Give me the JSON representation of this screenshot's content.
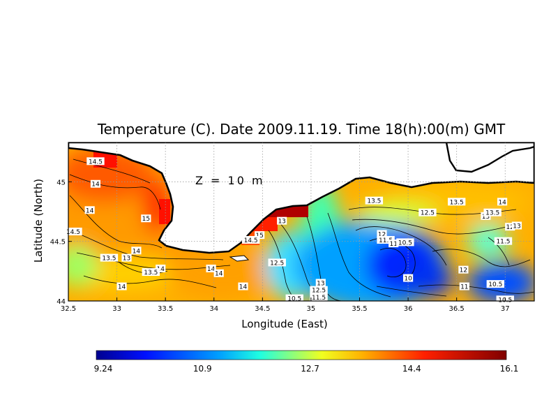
{
  "chart_data": {
    "type": "heatmap",
    "title": "Temperature (C). Date 2009.11.19. Time 18(h):00(m) GMT",
    "xlabel": "Longitude (East)",
    "ylabel": "Latitude (North)",
    "annotation": "Z = 10 m",
    "xlim": [
      32.5,
      37.3
    ],
    "ylim": [
      44.0,
      45.33
    ],
    "x_ticks": [
      "32.5",
      "33",
      "33.5",
      "34",
      "34.5",
      "35",
      "35.5",
      "36",
      "36.5",
      "37"
    ],
    "x_tick_values": [
      32.5,
      33,
      33.5,
      34,
      34.5,
      35,
      35.5,
      36,
      36.5,
      37
    ],
    "y_ticks": [
      "44",
      "44.5",
      "45"
    ],
    "y_tick_values": [
      44,
      44.5,
      45
    ],
    "grid": true,
    "colorbar": {
      "min": 9.24,
      "max": 16.1,
      "ticks": [
        "9.24",
        "10.9",
        "12.7",
        "14.4",
        "16.1"
      ],
      "tick_values": [
        9.24,
        10.9,
        12.7,
        14.4,
        16.1
      ]
    },
    "contour_labels": [
      {
        "text": "14.5",
        "lon": 32.78,
        "lat": 45.17
      },
      {
        "text": "14",
        "lon": 32.78,
        "lat": 44.98
      },
      {
        "text": "14",
        "lon": 32.72,
        "lat": 44.76
      },
      {
        "text": "14.5",
        "lon": 32.55,
        "lat": 44.58
      },
      {
        "text": "15",
        "lon": 33.3,
        "lat": 44.69
      },
      {
        "text": "14",
        "lon": 33.2,
        "lat": 44.42
      },
      {
        "text": "13.5",
        "lon": 32.92,
        "lat": 44.36
      },
      {
        "text": "13",
        "lon": 33.1,
        "lat": 44.36
      },
      {
        "text": "14",
        "lon": 33.45,
        "lat": 44.27
      },
      {
        "text": "13.5",
        "lon": 33.35,
        "lat": 44.24
      },
      {
        "text": "14",
        "lon": 33.05,
        "lat": 44.12
      },
      {
        "text": "14",
        "lon": 33.97,
        "lat": 44.27
      },
      {
        "text": "14",
        "lon": 34.05,
        "lat": 44.23
      },
      {
        "text": "14",
        "lon": 34.3,
        "lat": 44.12
      },
      {
        "text": "15",
        "lon": 34.47,
        "lat": 44.55
      },
      {
        "text": "14.5",
        "lon": 34.38,
        "lat": 44.51
      },
      {
        "text": "13",
        "lon": 34.7,
        "lat": 44.67
      },
      {
        "text": "12.5",
        "lon": 34.65,
        "lat": 44.32
      },
      {
        "text": "10.5",
        "lon": 34.83,
        "lat": 44.02
      },
      {
        "text": "13",
        "lon": 35.1,
        "lat": 44.15
      },
      {
        "text": "12.5",
        "lon": 35.08,
        "lat": 44.09
      },
      {
        "text": "11.5",
        "lon": 35.08,
        "lat": 44.03
      },
      {
        "text": "13.5",
        "lon": 35.65,
        "lat": 44.84
      },
      {
        "text": "12",
        "lon": 35.73,
        "lat": 44.56
      },
      {
        "text": "11.5",
        "lon": 35.77,
        "lat": 44.51
      },
      {
        "text": "11",
        "lon": 35.85,
        "lat": 44.48
      },
      {
        "text": "10.5",
        "lon": 35.97,
        "lat": 44.49
      },
      {
        "text": "10",
        "lon": 36.0,
        "lat": 44.19
      },
      {
        "text": "12.5",
        "lon": 36.2,
        "lat": 44.74
      },
      {
        "text": "13.5",
        "lon": 36.5,
        "lat": 44.83
      },
      {
        "text": "13",
        "lon": 36.8,
        "lat": 44.71
      },
      {
        "text": "13.5",
        "lon": 36.87,
        "lat": 44.74
      },
      {
        "text": "14",
        "lon": 36.97,
        "lat": 44.83
      },
      {
        "text": "12",
        "lon": 37.05,
        "lat": 44.62
      },
      {
        "text": "13",
        "lon": 37.12,
        "lat": 44.63
      },
      {
        "text": "11.5",
        "lon": 36.98,
        "lat": 44.5
      },
      {
        "text": "12",
        "lon": 36.57,
        "lat": 44.26
      },
      {
        "text": "10.5",
        "lon": 36.9,
        "lat": 44.14
      },
      {
        "text": "11",
        "lon": 36.58,
        "lat": 44.12
      },
      {
        "text": "10.5",
        "lon": 37.0,
        "lat": 44.01
      }
    ]
  }
}
